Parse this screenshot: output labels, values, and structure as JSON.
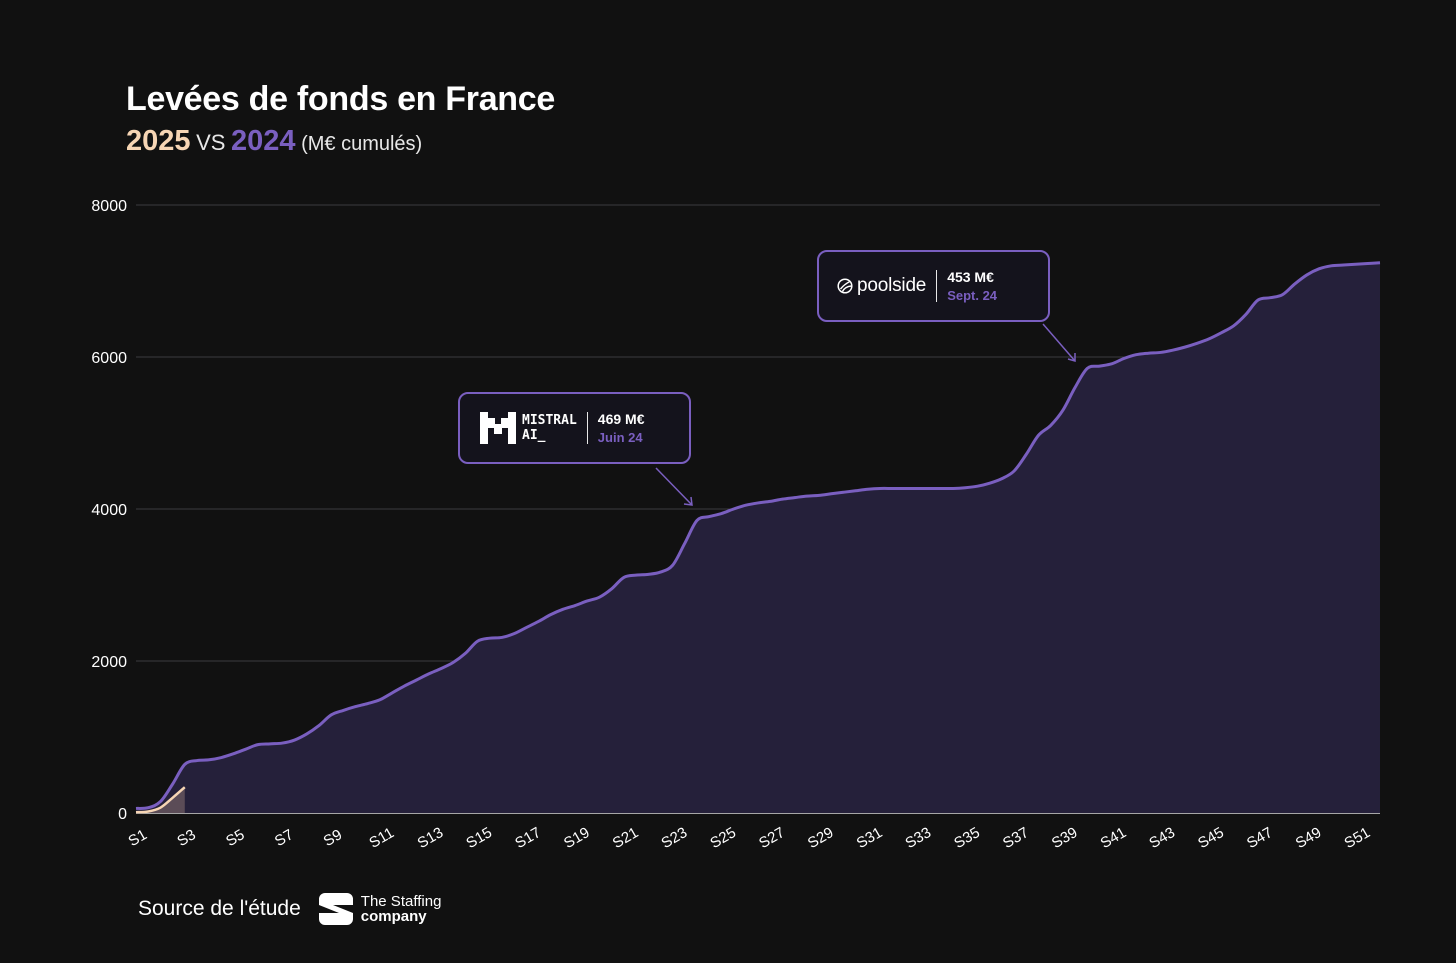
{
  "header": {
    "title": "Levées de fonds en France",
    "subtitle_year_2025": "2025",
    "subtitle_vs": "VS",
    "subtitle_year_2024": "2024",
    "subtitle_unit": "(M€ cumulés)"
  },
  "callouts": [
    {
      "name": "mistral",
      "logo_line1": "MISTRAL",
      "logo_line2": "AI_",
      "amount": "469 M€",
      "date": "Juin 24"
    },
    {
      "name": "poolside",
      "logo_text": "poolside",
      "amount": "453 M€",
      "date": "Sept. 24"
    }
  ],
  "footer": {
    "source_label": "Source de l'étude",
    "logo_line1": "The Staffing",
    "logo_line2": "company"
  },
  "colors": {
    "series_2024": "#7a5fc0",
    "series_2025": "#f6d5b4",
    "area_2024": "#25203a",
    "background": "#111111"
  },
  "chart_data": {
    "type": "area",
    "x_labels": [
      "S1",
      "S3",
      "S5",
      "S7",
      "S9",
      "S11",
      "S13",
      "S15",
      "S17",
      "S19",
      "S21",
      "S23",
      "S25",
      "S27",
      "S29",
      "S31",
      "S33",
      "S35",
      "S37",
      "S39",
      "S41",
      "S43",
      "S45",
      "S47",
      "S49",
      "S51"
    ],
    "y_ticks": [
      0,
      2000,
      4000,
      6000,
      8000
    ],
    "ylim": [
      0,
      8000
    ],
    "grid": true,
    "series": [
      {
        "name": "2024",
        "x": [
          1,
          1.5,
          2,
          2.5,
          3,
          3.5,
          4,
          4.5,
          5,
          5.5,
          6,
          6.5,
          7,
          7.5,
          8,
          8.5,
          9,
          9.5,
          10,
          10.5,
          11,
          11.5,
          12,
          12.5,
          13,
          13.5,
          14,
          14.5,
          15,
          15.5,
          16,
          16.5,
          17,
          17.5,
          18,
          18.5,
          19,
          19.5,
          20,
          20.5,
          21,
          21.5,
          22,
          22.5,
          23,
          23.5,
          24,
          24.5,
          25,
          25.5,
          26,
          26.5,
          27,
          27.5,
          28,
          28.5,
          29,
          29.5,
          30,
          30.5,
          31,
          31.5,
          32,
          32.5,
          33,
          33.5,
          34,
          34.5,
          35,
          35.5,
          36,
          36.5,
          37,
          37.5,
          38,
          38.5,
          39,
          39.5,
          40,
          40.5,
          41,
          41.5,
          42,
          42.5,
          43,
          43.5,
          44,
          44.5,
          45,
          45.5,
          46,
          46.5,
          47,
          47.5,
          48,
          48.5,
          49,
          49.5,
          50,
          50.5,
          51,
          51.5,
          52
        ],
        "values": [
          60,
          70,
          150,
          380,
          640,
          690,
          700,
          730,
          780,
          840,
          900,
          910,
          920,
          960,
          1040,
          1150,
          1290,
          1350,
          1400,
          1440,
          1490,
          1580,
          1670,
          1750,
          1830,
          1900,
          1980,
          2100,
          2260,
          2300,
          2310,
          2360,
          2440,
          2520,
          2610,
          2680,
          2730,
          2790,
          2840,
          2950,
          3100,
          3130,
          3140,
          3170,
          3260,
          3550,
          3850,
          3900,
          3940,
          4000,
          4050,
          4080,
          4100,
          4130,
          4150,
          4170,
          4180,
          4200,
          4220,
          4240,
          4260,
          4270,
          4270,
          4270,
          4270,
          4270,
          4270,
          4270,
          4280,
          4300,
          4340,
          4400,
          4500,
          4720,
          4970,
          5100,
          5300,
          5600,
          5850,
          5880,
          5910,
          5980,
          6030,
          6050,
          6060,
          6090,
          6130,
          6180,
          6240,
          6320,
          6410,
          6560,
          6750,
          6780,
          6820,
          6960,
          7080,
          7160,
          7200,
          7210,
          7220,
          7230,
          7240
        ]
      },
      {
        "name": "2025",
        "x": [
          1,
          1.5,
          2,
          2.5,
          3
        ],
        "values": [
          10,
          20,
          70,
          200,
          340
        ]
      }
    ]
  }
}
